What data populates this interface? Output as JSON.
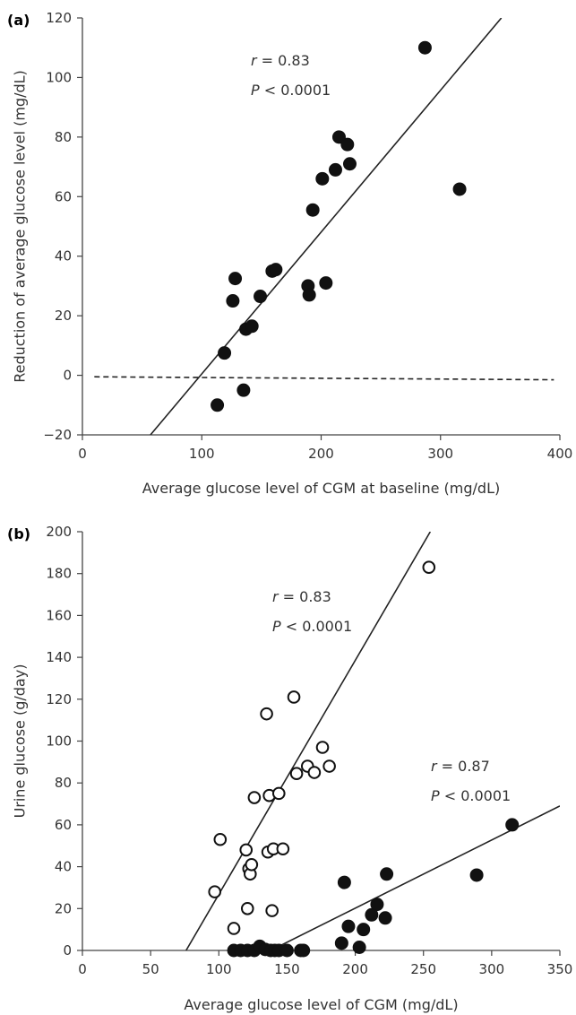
{
  "chart_data": [
    {
      "panel": "(a)",
      "type": "scatter",
      "xlabel": "Average glucose level of CGM at baseline (mg/dL)",
      "ylabel": "Reduction of average glucose level (mg/dL)",
      "xlim": [
        0,
        400
      ],
      "ylim": [
        -20,
        120
      ],
      "xticks": [
        0,
        100,
        200,
        300,
        400
      ],
      "yticks": [
        -20,
        0,
        20,
        40,
        60,
        80,
        100,
        120
      ],
      "grid": false,
      "annotations": [
        {
          "r_label": "r",
          "r_text": " = 0.83",
          "p_label": "P",
          "p_text": " < 0.0001"
        }
      ],
      "fit_lines": [
        {
          "style": "solid",
          "x": [
            57,
            351
          ],
          "y": [
            -20,
            120
          ]
        },
        {
          "style": "dashed",
          "x": [
            10,
            395
          ],
          "y": [
            -0.5,
            -1.5
          ]
        }
      ],
      "series": [
        {
          "marker": "filled",
          "x": [
            113,
            119,
            126,
            128,
            135,
            137,
            142,
            149,
            159,
            162,
            189,
            190,
            193,
            201,
            204,
            212,
            215,
            222,
            224,
            287,
            316
          ],
          "y": [
            -10,
            7.5,
            25,
            32.5,
            -5,
            15.5,
            16.5,
            26.5,
            35,
            35.5,
            30,
            27,
            55.5,
            66,
            31,
            69,
            80,
            77.5,
            71,
            110,
            62.5
          ]
        }
      ]
    },
    {
      "panel": "(b)",
      "type": "scatter",
      "xlabel": "Average glucose level of CGM (mg/dL)",
      "ylabel": "Urine glucose (g/day)",
      "xlim": [
        0,
        350
      ],
      "ylim": [
        0,
        200
      ],
      "xticks": [
        0,
        50,
        100,
        150,
        200,
        250,
        300,
        350
      ],
      "yticks": [
        0,
        20,
        40,
        60,
        80,
        100,
        120,
        140,
        160,
        180,
        200
      ],
      "grid": false,
      "annotations": [
        {
          "r_label": "r",
          "r_text": " = 0.83",
          "p_label": "P",
          "p_text": " < 0.0001"
        },
        {
          "r_label": "r",
          "r_text": " = 0.87",
          "p_label": "P",
          "p_text": " < 0.0001"
        }
      ],
      "fit_lines": [
        {
          "style": "solid",
          "x": [
            76,
            255
          ],
          "y": [
            0,
            200
          ]
        },
        {
          "style": "solid",
          "x": [
            138,
            350
          ],
          "y": [
            0,
            69
          ]
        }
      ],
      "series": [
        {
          "marker": "open",
          "x": [
            97,
            101,
            111,
            120,
            121,
            122,
            123,
            124,
            126,
            135,
            136,
            137,
            139,
            140,
            144,
            147,
            155,
            157,
            165,
            170,
            176,
            181,
            254
          ],
          "y": [
            28,
            53,
            10.5,
            48,
            20,
            39,
            36.5,
            41,
            73,
            113,
            47,
            74,
            19,
            48.5,
            75,
            48.5,
            121,
            84.5,
            88,
            85,
            97,
            88,
            183
          ]
        },
        {
          "marker": "filled",
          "x": [
            111,
            116,
            121,
            126,
            130,
            134,
            138,
            141,
            144,
            150,
            160,
            162,
            190,
            192,
            195,
            203,
            206,
            212,
            216,
            222,
            223,
            289,
            315
          ],
          "y": [
            0,
            0,
            0,
            0,
            2,
            0.5,
            0,
            0,
            0,
            0,
            0,
            0,
            3.5,
            32.5,
            11.5,
            1.5,
            10,
            17,
            22,
            15.5,
            36.5,
            36,
            60
          ]
        }
      ]
    }
  ]
}
